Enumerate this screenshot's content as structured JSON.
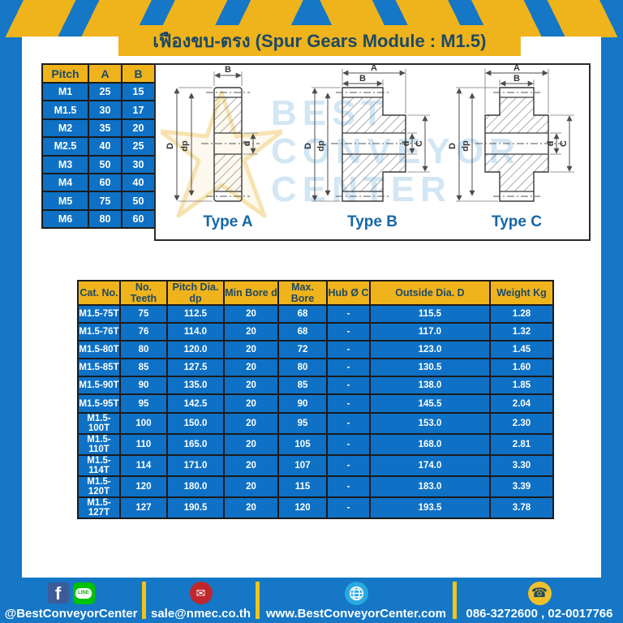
{
  "title": "เฟืองขบ-ตรง (Spur Gears Module : M1.5)",
  "pitch_table": {
    "headers": [
      "Pitch",
      "A",
      "B"
    ],
    "rows": [
      [
        "M1",
        "25",
        "15"
      ],
      [
        "M1.5",
        "30",
        "17"
      ],
      [
        "M2",
        "35",
        "20"
      ],
      [
        "M2.5",
        "40",
        "25"
      ],
      [
        "M3",
        "50",
        "30"
      ],
      [
        "M4",
        "60",
        "40"
      ],
      [
        "M5",
        "75",
        "50"
      ],
      [
        "M6",
        "80",
        "60"
      ]
    ]
  },
  "diagrams": {
    "watermark_lines": [
      "BEST",
      "CONVEYOR",
      "CENTER"
    ],
    "types": [
      {
        "label": "Type A",
        "dim_top_b": "B",
        "dim_d": "D",
        "dim_dp": "dp",
        "dim_bore": "d"
      },
      {
        "label": "Type B",
        "dim_top_a": "A",
        "dim_top_b": "B",
        "dim_d": "D",
        "dim_dp": "dp",
        "dim_bore": "d",
        "dim_hub": "C"
      },
      {
        "label": "Type C",
        "dim_top_a": "A",
        "dim_top_b": "B",
        "dim_d": "D",
        "dim_dp": "dp",
        "dim_bore": "d",
        "dim_hub": "C"
      }
    ]
  },
  "main_table": {
    "headers": [
      "Cat. No.",
      "No. Teeth",
      "Pitch Dia. dp",
      "Min Bore d",
      "Max. Bore",
      "Hub Ø C",
      "Outside Dia. D",
      "Weight Kg"
    ],
    "rows": [
      [
        "M1.5-75T",
        "75",
        "112.5",
        "20",
        "68",
        "-",
        "115.5",
        "1.28"
      ],
      [
        "M1.5-76T",
        "76",
        "114.0",
        "20",
        "68",
        "-",
        "117.0",
        "1.32"
      ],
      [
        "M1.5-80T",
        "80",
        "120.0",
        "20",
        "72",
        "-",
        "123.0",
        "1.45"
      ],
      [
        "M1.5-85T",
        "85",
        "127.5",
        "20",
        "80",
        "-",
        "130.5",
        "1.60"
      ],
      [
        "M1.5-90T",
        "90",
        "135.0",
        "20",
        "85",
        "-",
        "138.0",
        "1.85"
      ],
      [
        "M1.5-95T",
        "95",
        "142.5",
        "20",
        "90",
        "-",
        "145.5",
        "2.04"
      ],
      [
        "M1.5-100T",
        "100",
        "150.0",
        "20",
        "95",
        "-",
        "153.0",
        "2.30"
      ],
      [
        "M1.5-110T",
        "110",
        "165.0",
        "20",
        "105",
        "-",
        "168.0",
        "2.81"
      ],
      [
        "M1.5-114T",
        "114",
        "171.0",
        "20",
        "107",
        "-",
        "174.0",
        "3.30"
      ],
      [
        "M1.5-120T",
        "120",
        "180.0",
        "20",
        "115",
        "-",
        "183.0",
        "3.39"
      ],
      [
        "M1.5-127T",
        "127",
        "190.5",
        "20",
        "120",
        "-",
        "193.5",
        "3.78"
      ]
    ]
  },
  "footer": {
    "social_label": "@BestConveyorCenter",
    "line_badge": "LINE",
    "facebook_glyph": "f",
    "email": "sale@nmec.co.th",
    "website": "www.BestConveyorCenter.com",
    "phone": "086-3272600 , 02-0017766",
    "mail_glyph": "✉",
    "phone_glyph": "☎"
  },
  "colors": {
    "band_blue": "#1577c5",
    "cell_blue": "#0e71c5",
    "accent_yellow": "#efb31c",
    "navy_text": "#1d4966",
    "type_label_blue": "#1667a5",
    "mail_red": "#c0272d",
    "line_green": "#00c300",
    "facebook_blue": "#3d5b99",
    "globe_blue": "#2aa9e0"
  }
}
